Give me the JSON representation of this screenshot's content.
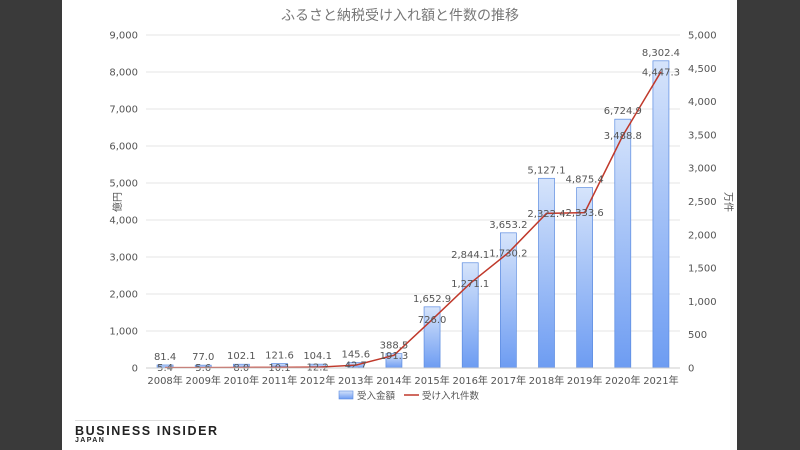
{
  "chart_data": {
    "type": "bar",
    "title": "ふるさと納税受け入れ額と件数の推移",
    "categories": [
      "2008年",
      "2009年",
      "2010年",
      "2011年",
      "2012年",
      "2013年",
      "2014年",
      "2015年",
      "2016年",
      "2017年",
      "2018年",
      "2019年",
      "2020年",
      "2021年"
    ],
    "series": [
      {
        "name": "受入金額",
        "type": "bar",
        "axis": "left",
        "values": [
          81.4,
          77.0,
          102.1,
          121.6,
          104.1,
          145.6,
          388.5,
          1652.9,
          2844.1,
          3653.2,
          5127.1,
          4875.4,
          6724.9,
          8302.4
        ],
        "labels": [
          "81.4",
          "77.0",
          "102.1",
          "121.6",
          "104.1",
          "145.6",
          "388.5",
          "1,652.9",
          "2,844.1",
          "3,653.2",
          "5,127.1",
          "4,875.4",
          "6,724.9",
          "8,302.4"
        ]
      },
      {
        "name": "受け入れ件数",
        "type": "line",
        "axis": "right",
        "values": [
          5.4,
          5.6,
          8.0,
          10.1,
          12.2,
          42.7,
          191.3,
          726.0,
          1271.1,
          1730.2,
          2322.4,
          2333.6,
          3488.8,
          4447.3
        ],
        "labels": [
          "5.4",
          "5.6",
          "8.0",
          "10.1",
          "12.2",
          "42.7",
          "191.3",
          "726.0",
          "1,271.1",
          "1,730.2",
          "2,322.4",
          "2,333.6",
          "3,488.8",
          "4,447.3"
        ]
      }
    ],
    "ylabel": "億円",
    "y2label": "万件",
    "ylim": [
      0,
      9000
    ],
    "y2lim": [
      0,
      5000
    ],
    "yticks": [
      "0",
      "1,000",
      "2,000",
      "3,000",
      "4,000",
      "5,000",
      "6,000",
      "7,000",
      "8,000",
      "9,000"
    ],
    "y2ticks": [
      "0",
      "500",
      "1,000",
      "1,500",
      "2,000",
      "2,500",
      "3,000",
      "3,500",
      "4,000",
      "4,500",
      "5,000"
    ],
    "grid": true,
    "legend": "bottom",
    "colors": {
      "bar_top": "#d6e4fb",
      "bar_bottom": "#6d9cf2",
      "bar_stroke": "#5b8be0",
      "line": "#c0392b",
      "grid": "#e6e6e6",
      "text": "#555555"
    }
  },
  "brand": {
    "name": "BUSINESS INSIDER",
    "sub": "JAPAN"
  }
}
